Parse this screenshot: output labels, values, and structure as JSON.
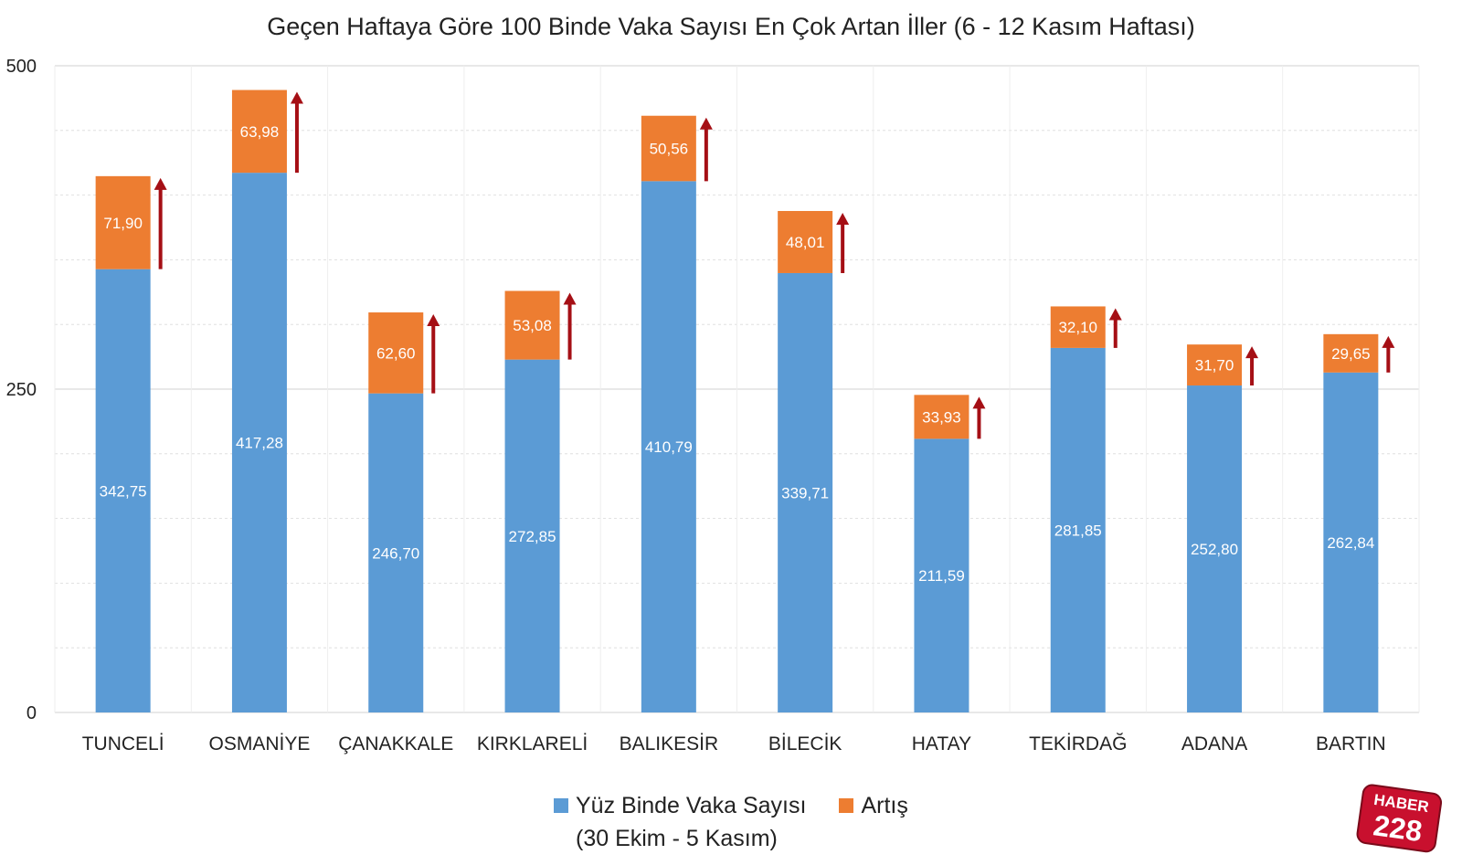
{
  "colors": {
    "base": "#5B9BD5",
    "increase": "#ED7D31",
    "arrow": "#A50F15",
    "grid": "#D9D9D9",
    "text": "#222222",
    "logo_red": "#C8102E"
  },
  "legend": {
    "base_label": "Yüz Binde Vaka Sayısı",
    "base_sublabel": "(30 Ekim - 5 Kasım)",
    "increase_label": "Artış"
  },
  "logo": {
    "line1": "HABER",
    "line2": "228"
  },
  "chart_data": {
    "type": "bar",
    "stacked": true,
    "title": "Geçen Haftaya Göre 100 Binde Vaka Sayısı En Çok Artan İller (6 - 12 Kasım Haftası)",
    "xlabel": "",
    "ylabel": "",
    "ylim": [
      0,
      500
    ],
    "yticks": [
      "0",
      "250",
      "500"
    ],
    "grid": true,
    "legend_position": "bottom",
    "categories": [
      "TUNCELİ",
      "OSMANİYE",
      "ÇANAKKALE",
      "KIRKLARELİ",
      "BALIKESİR",
      "BİLECİK",
      "HATAY",
      "TEKİRDAĞ",
      "ADANA",
      "BARTIN"
    ],
    "series": [
      {
        "name": "Yüz Binde Vaka Sayısı (30 Ekim - 5 Kasım)",
        "values": [
          342.75,
          417.28,
          246.7,
          272.85,
          410.79,
          339.71,
          211.59,
          281.85,
          252.8,
          262.84
        ],
        "labels": [
          "342,75",
          "417,28",
          "246,70",
          "272,85",
          "410,79",
          "339,71",
          "211,59",
          "281,85",
          "252,80",
          "262,84"
        ]
      },
      {
        "name": "Artış",
        "values": [
          71.9,
          63.98,
          62.6,
          53.08,
          50.56,
          48.01,
          33.93,
          32.1,
          31.7,
          29.65
        ],
        "labels": [
          "71,90",
          "63,98",
          "62,60",
          "53,08",
          "50,56",
          "48,01",
          "33,93",
          "32,10",
          "31,70",
          "29,65"
        ]
      }
    ]
  }
}
